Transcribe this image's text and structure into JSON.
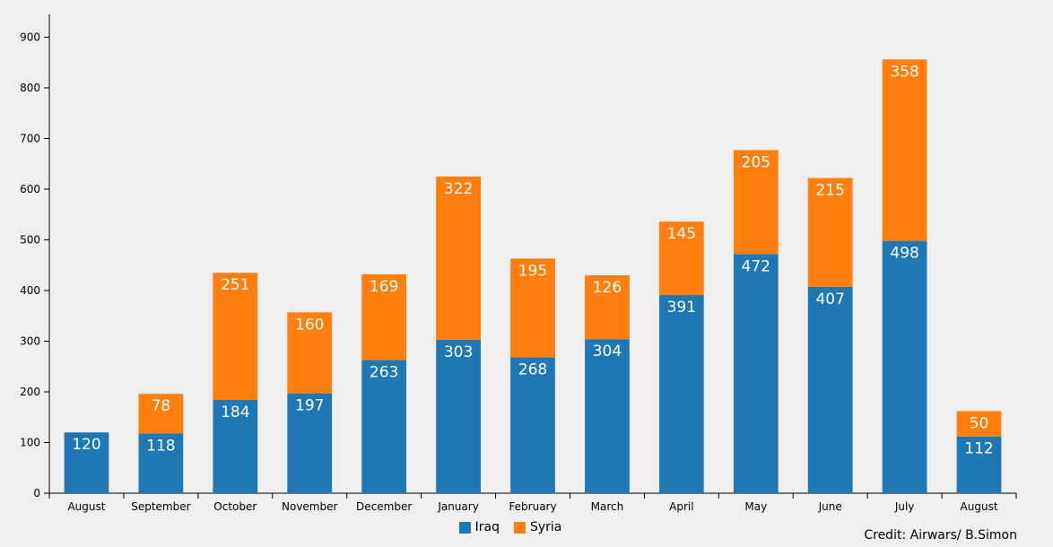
{
  "chart_data": {
    "type": "bar",
    "stacked": true,
    "categories": [
      "August",
      "September",
      "October",
      "November",
      "December",
      "January",
      "February",
      "March",
      "April",
      "May",
      "June",
      "July",
      "August"
    ],
    "series": [
      {
        "name": "Iraq",
        "color": "#1f77b4",
        "values": [
          120,
          118,
          184,
          197,
          263,
          303,
          268,
          304,
          391,
          472,
          407,
          498,
          112
        ]
      },
      {
        "name": "Syria",
        "color": "#ff7f0e",
        "values": [
          null,
          78,
          251,
          160,
          169,
          322,
          195,
          126,
          145,
          205,
          215,
          358,
          50
        ]
      }
    ],
    "yticks": [
      0,
      100,
      200,
      300,
      400,
      500,
      600,
      700,
      800,
      900
    ],
    "ylim": [
      0,
      945
    ],
    "legend_position": "bottom-center",
    "credit": "Credit: Airwars/ B.Simon"
  }
}
